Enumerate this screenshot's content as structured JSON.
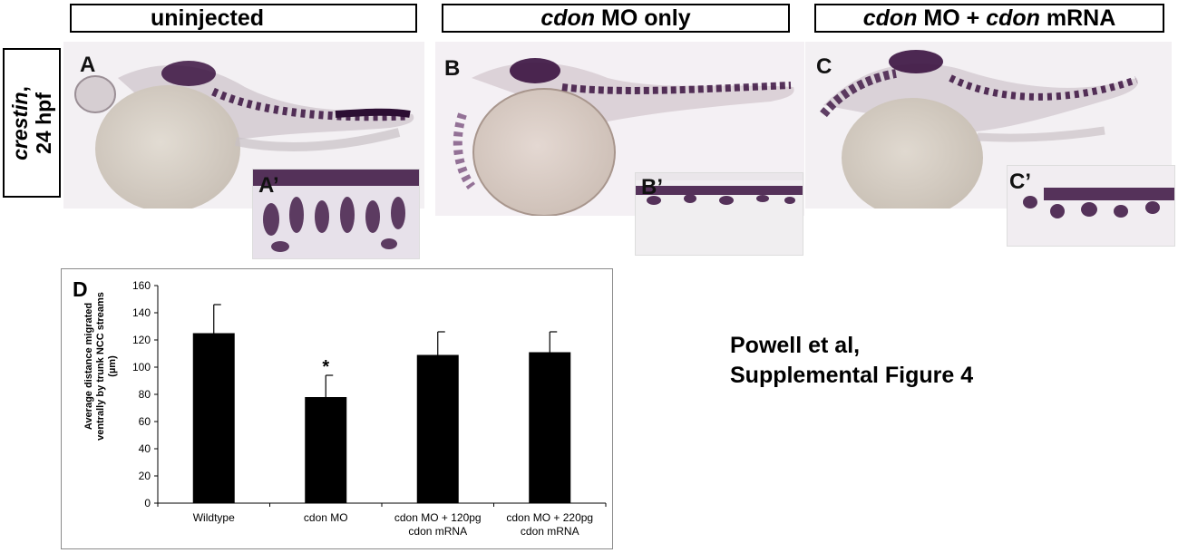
{
  "headers": {
    "uninjected": "uninjected",
    "mo_only_gene": "cdon",
    "mo_only_rest": " MO only",
    "rescue_gene1": "cdon",
    "rescue_mid": " MO + ",
    "rescue_gene2": "cdon",
    "rescue_rest": " mRNA"
  },
  "side_label": {
    "probe": "crestin",
    "comma": ",",
    "stage": "24 hpf"
  },
  "panels": {
    "A": "A",
    "A_inset": "A’",
    "B": "B",
    "B_inset": "B’",
    "C": "C",
    "C_inset": "C’"
  },
  "credit": {
    "line1": "Powell et al,",
    "line2": "Supplemental Figure 4"
  },
  "colors": {
    "stain": "#3a1240",
    "yolk": "#d9d2c8",
    "background": "#f2eef2",
    "bar": "#000000"
  },
  "chart_data": {
    "type": "bar",
    "panel_label": "D",
    "ylabel_lines": [
      "Average distance migrated",
      "ventrally by trunk NCC streams",
      "(µm)"
    ],
    "ylim": [
      0,
      160
    ],
    "yticks": [
      0,
      20,
      40,
      60,
      80,
      100,
      120,
      140,
      160
    ],
    "categories": [
      [
        "Wildtype"
      ],
      [
        "cdon MO"
      ],
      [
        "cdon MO + 120pg",
        "cdon mRNA"
      ],
      [
        "cdon MO + 220pg",
        "cdon mRNA"
      ]
    ],
    "values": [
      125,
      78,
      109,
      111
    ],
    "errors": [
      21,
      16,
      17,
      15
    ],
    "annotations": [
      "",
      "*",
      "",
      ""
    ],
    "grid": false,
    "legend": "none"
  }
}
